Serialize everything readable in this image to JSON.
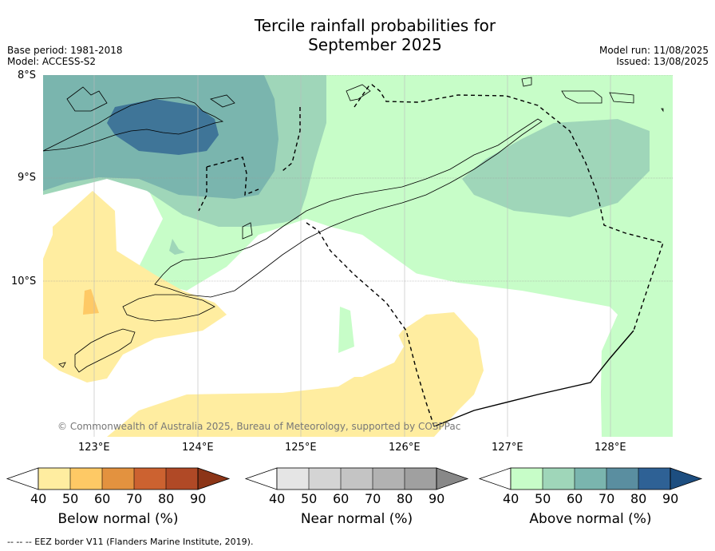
{
  "title_line1": "Tercile rainfall probabilities for",
  "title_line2": "September 2025",
  "meta_left": [
    "Base period: 1981-2018",
    "Model: ACCESS-S2"
  ],
  "meta_right": [
    "Model run: 11/08/2025",
    "Issued: 13/08/2025"
  ],
  "lat_labels": [
    "8°S",
    "9°S",
    "10°S"
  ],
  "lon_labels": [
    "123°E",
    "124°E",
    "125°E",
    "126°E",
    "127°E",
    "128°E"
  ],
  "copyright": "© Commonwealth of Australia 2025, Bureau of Meteorology, supported by COSPPac",
  "footer": "--  --  -- EEZ border V11 (Flanders Marine Institute, 2019).",
  "colorbars": [
    {
      "title": "Below normal (%)",
      "ticks": [
        "40",
        "50",
        "60",
        "70",
        "80",
        "90"
      ],
      "colors": [
        "#ffffff",
        "#ffeda0",
        "#fec965",
        "#e3923f",
        "#cc6230",
        "#b04926",
        "#8c3517"
      ]
    },
    {
      "title": "Near normal (%)",
      "ticks": [
        "40",
        "50",
        "60",
        "70",
        "80",
        "90"
      ],
      "colors": [
        "#ffffff",
        "#e5e5e5",
        "#d4d4d4",
        "#c4c4c4",
        "#b2b2b2",
        "#a0a0a0",
        "#888888"
      ]
    },
    {
      "title": "Above normal (%)",
      "ticks": [
        "40",
        "50",
        "60",
        "70",
        "80",
        "90"
      ],
      "colors": [
        "#ffffff",
        "#c7fdc8",
        "#9fd6b9",
        "#7ab5ae",
        "#5a8ea0",
        "#2e6195",
        "#1d4e80"
      ]
    }
  ]
}
